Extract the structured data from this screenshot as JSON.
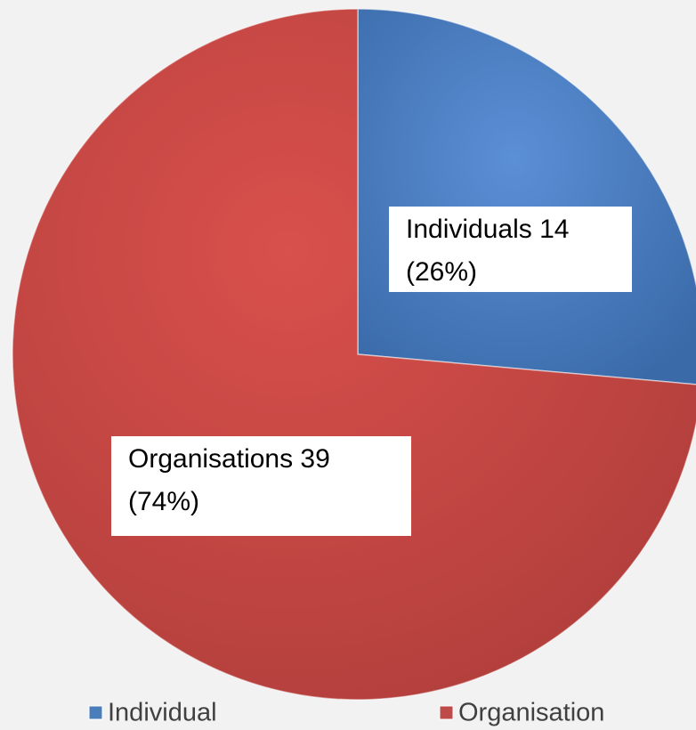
{
  "chart_data": {
    "type": "pie",
    "categories": [
      "Individual",
      "Organisation"
    ],
    "values": [
      14,
      39
    ],
    "value_labels": [
      [
        "Individuals 14",
        "(26%)"
      ],
      [
        "Organisations 39",
        "(74%)"
      ]
    ],
    "colors": [
      "#4a7ebb",
      "#be4b48"
    ],
    "legend": "bottom"
  }
}
